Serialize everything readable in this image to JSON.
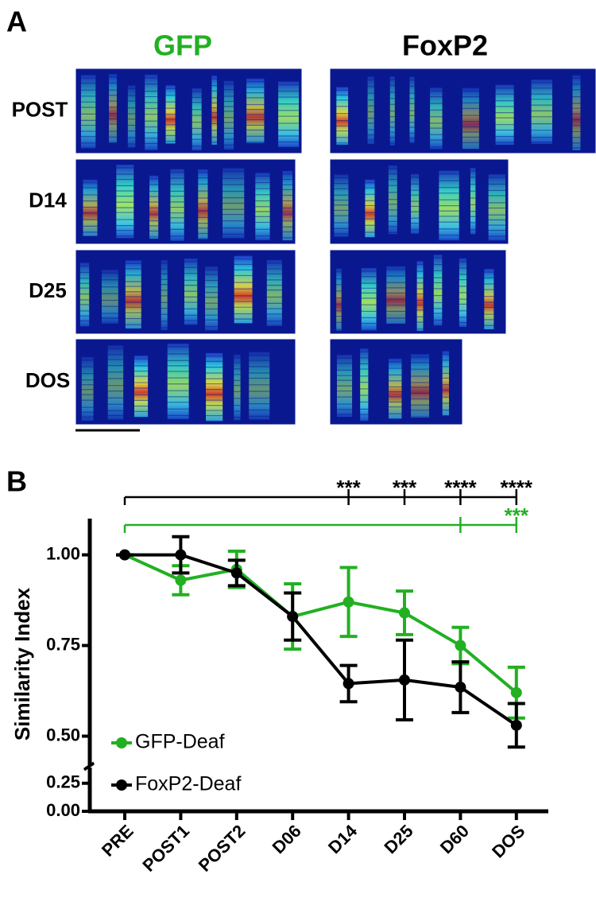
{
  "panel_a": {
    "label": "A",
    "columns": [
      "GFP",
      "FoxP2"
    ],
    "column_colors": [
      "#22b022",
      "#000000"
    ],
    "rows": [
      "POST",
      "D14",
      "D25",
      "DOS"
    ]
  },
  "chart_data": {
    "type": "line",
    "panel_label": "B",
    "ylabel": "Similarity Index",
    "categories": [
      "PRE",
      "POST1",
      "POST2",
      "D06",
      "D14",
      "D25",
      "D60",
      "DOS"
    ],
    "series": [
      {
        "name": "GFP-Deaf",
        "color": "#22b022",
        "values": [
          1.0,
          0.93,
          0.96,
          0.83,
          0.87,
          0.84,
          0.75,
          0.62
        ],
        "errors": [
          0,
          0.04,
          0.05,
          0.09,
          0.095,
          0.06,
          0.05,
          0.07
        ]
      },
      {
        "name": "FoxP2-Deaf",
        "color": "#000000",
        "values": [
          1.0,
          1.0,
          0.95,
          0.83,
          0.645,
          0.655,
          0.635,
          0.53
        ],
        "errors": [
          0,
          0.05,
          0.035,
          0.065,
          0.05,
          0.11,
          0.07,
          0.06
        ]
      }
    ],
    "ylim": [
      0,
      1.1
    ],
    "ybreak": [
      0.39,
      0.42
    ],
    "yticks": [
      {
        "value": 0,
        "label": "0.00"
      },
      {
        "value": 0.25,
        "label": "0.25"
      },
      {
        "value": 0.5,
        "label": "0.50"
      },
      {
        "value": 0.75,
        "label": "0.75"
      },
      {
        "value": 1,
        "label": "1.00"
      }
    ],
    "legend": "lower left",
    "significance": [
      {
        "color": "#000000",
        "from": 0,
        "ticks": [
          4,
          5,
          6,
          7
        ],
        "labels": [
          {
            "at": 4,
            "label": "***"
          },
          {
            "at": 5,
            "label": "***"
          },
          {
            "at": 6,
            "label": "****"
          },
          {
            "at": 7,
            "label": "****"
          }
        ]
      },
      {
        "color": "#22b022",
        "from": 0,
        "ticks": [
          6,
          7
        ],
        "labels": [
          {
            "at": 7,
            "label": "***"
          }
        ]
      }
    ]
  }
}
